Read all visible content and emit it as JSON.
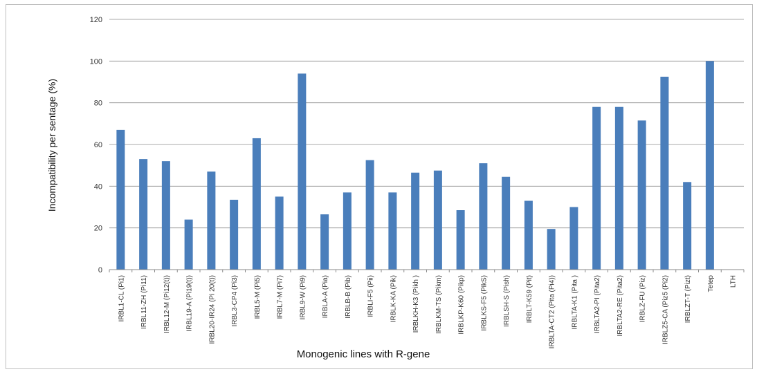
{
  "chart_data": {
    "type": "bar",
    "title": "",
    "xlabel": "Monogenic lines with R-gene",
    "ylabel": "Incompatibility per sentage  (%)",
    "ylim": [
      0,
      120
    ],
    "yticks": [
      0,
      20,
      40,
      60,
      80,
      100,
      120
    ],
    "grid": true,
    "legend": "none",
    "bar_color": "#4a7ebb",
    "categories": [
      "IRBL1-CL (Pi1)",
      "IRBL11-ZH (Pi11)",
      "IRBL12-M (Pi12(t))",
      "IRBL19-A (Pi19(t))",
      "IRBL20-IR24 (Pi 20(t))",
      "IRBL3-CP4 (Pi3)",
      "IRBL5-M (Pi5)",
      "IRBL7-M (Pi7)",
      "IRBL9-W (Pi9)",
      "IRBLA-A (Pia)",
      "IRBLB-B (Pib)",
      "IRBLI-F5 (Pii)",
      "IRBLK-KA (Pik)",
      "IRBLKH-K3 (Pikh )",
      "IRBLKM-TS (Pikm)",
      "IRBLKP-K60 (Pikp)",
      "IRBLKS-F5 (PikS)",
      "IRBLSH-S (Pish)",
      "IRBLT-K59 (Pit)",
      "IRBLTA-CT2 (Pita (Pi4))",
      "IRBLTA-K1 (Pita )",
      "IRBLTA2-PI (Pita2)",
      "IRBLTA2-RE (Pita2)",
      "IRBLZ-FU (Piz)",
      "IRBLZ5-CA (Piz5 (Pi2)",
      "IRBLZT-T (Pizt)",
      "Tetep",
      "LTH"
    ],
    "values": [
      67,
      53,
      52,
      24,
      47,
      33.5,
      63,
      35,
      94,
      26.5,
      37,
      52.5,
      37,
      46.5,
      47.5,
      28.5,
      51,
      44.5,
      33,
      19.5,
      30,
      78,
      78,
      71.5,
      92.5,
      42,
      100,
      0
    ]
  }
}
